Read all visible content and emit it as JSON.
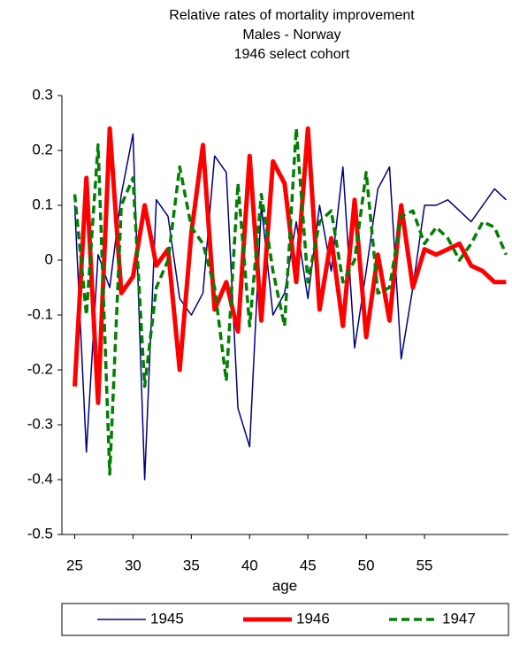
{
  "chart_data": {
    "type": "line",
    "title": [
      "Relative rates of mortality improvement",
      "Males - Norway",
      "1946 select cohort"
    ],
    "x_label": "age",
    "x": [
      25,
      26,
      27,
      28,
      29,
      30,
      31,
      32,
      33,
      34,
      35,
      36,
      37,
      38,
      39,
      40,
      41,
      42,
      43,
      44,
      45,
      46,
      47,
      48,
      49,
      50,
      51,
      52,
      53,
      54,
      55,
      56,
      57,
      58,
      59,
      60,
      61,
      62
    ],
    "series": [
      {
        "name": "1945",
        "color": "#000080",
        "dash": "none",
        "width": 1.5,
        "values": [
          0.1,
          -0.35,
          0.01,
          -0.05,
          0.12,
          0.23,
          -0.4,
          0.11,
          0.08,
          -0.07,
          -0.1,
          -0.06,
          0.19,
          0.16,
          -0.27,
          -0.34,
          0.1,
          -0.1,
          -0.06,
          0.07,
          -0.07,
          0.1,
          -0.02,
          0.17,
          -0.16,
          -0.02,
          0.13,
          0.17,
          -0.18,
          -0.05,
          0.1,
          0.1,
          0.11,
          0.09,
          0.07,
          0.1,
          0.13,
          0.11
        ]
      },
      {
        "name": "1946",
        "color": "#ff0000",
        "dash": "none",
        "width": 5,
        "values": [
          -0.23,
          0.15,
          -0.26,
          0.24,
          -0.06,
          -0.03,
          0.1,
          -0.01,
          0.02,
          -0.2,
          0.05,
          0.21,
          -0.09,
          -0.04,
          -0.13,
          0.19,
          -0.11,
          0.18,
          0.14,
          -0.04,
          0.24,
          -0.09,
          0.04,
          -0.12,
          0.11,
          -0.14,
          0.01,
          -0.11,
          0.1,
          -0.05,
          0.02,
          0.01,
          0.02,
          0.03,
          -0.01,
          -0.02,
          -0.04,
          -0.04
        ]
      },
      {
        "name": "1947",
        "color": "#008000",
        "dash": "9,5",
        "width": 3.5,
        "values": [
          0.12,
          -0.1,
          0.21,
          -0.39,
          0.1,
          0.15,
          -0.23,
          -0.05,
          0.0,
          0.17,
          0.06,
          0.03,
          -0.05,
          -0.22,
          0.14,
          -0.12,
          0.12,
          -0.02,
          -0.12,
          0.24,
          -0.04,
          0.07,
          0.09,
          -0.04,
          0.0,
          0.16,
          -0.06,
          -0.05,
          0.08,
          0.09,
          0.03,
          0.06,
          0.04,
          0.0,
          0.03,
          0.07,
          0.06,
          0.01
        ]
      }
    ],
    "xlim": [
      23.9,
      62.2
    ],
    "xticks": [
      25,
      30,
      35,
      40,
      45,
      50,
      55
    ],
    "ylim": [
      -0.5,
      0.3
    ],
    "yticks": [
      0.3,
      0.2,
      0.1,
      0,
      -0.1,
      -0.2,
      -0.3,
      -0.4,
      -0.5
    ],
    "grid": false,
    "legend": "bottom"
  }
}
